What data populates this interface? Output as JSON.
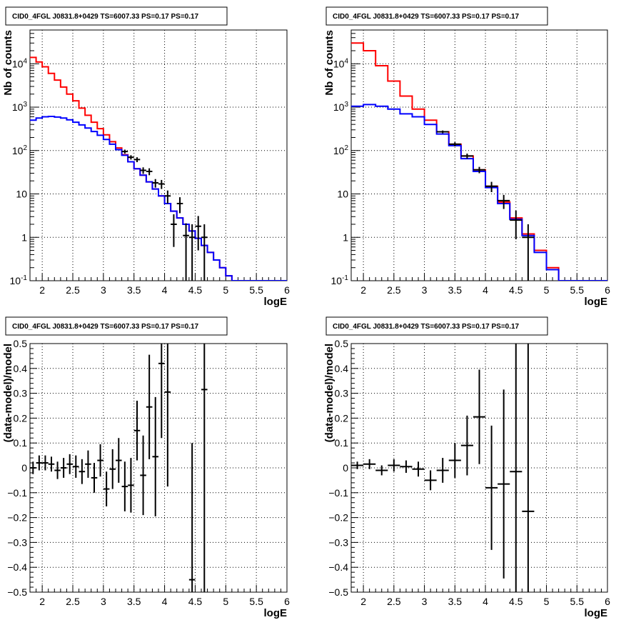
{
  "colors": {
    "model_total": "#ff0000",
    "model_component": "#0000ff",
    "data": "#000000"
  },
  "chart_data": [
    {
      "type": "line",
      "title": "CID0_4FGL J0831.8+0429 TS=6007.33 PS=0.17 PS=0.17",
      "xlabel": "logE",
      "ylabel": "Nb of counts",
      "xlim": [
        1.8,
        6.0
      ],
      "ylim": [
        0.1,
        60000
      ],
      "yscale": "log",
      "grid": true,
      "xticks": [
        "2",
        "2.5",
        "3",
        "3.5",
        "4",
        "4.5",
        "5",
        "5.5",
        "6"
      ],
      "yticks": [
        "10^-1",
        "1",
        "10",
        "10^2",
        "10^3",
        "10^4"
      ],
      "bin_edges": [
        1.8,
        1.9,
        2.0,
        2.1,
        2.2,
        2.3,
        2.4,
        2.5,
        2.6,
        2.7,
        2.8,
        2.9,
        3.0,
        3.1,
        3.2,
        3.3,
        3.4,
        3.5,
        3.6,
        3.7,
        3.8,
        3.9,
        4.0,
        4.1,
        4.2,
        4.3,
        4.4,
        4.5,
        4.6,
        4.7,
        4.8,
        4.9,
        5.0,
        5.1,
        5.2,
        6.0
      ],
      "series": [
        {
          "style": "histogram",
          "color": "#ff0000",
          "values": [
            14000,
            11000,
            8500,
            6000,
            4200,
            2900,
            2000,
            1400,
            950,
            650,
            450,
            320,
            230,
            160,
            115,
            80,
            55,
            38,
            27,
            19,
            13,
            9,
            6,
            4,
            2.8,
            2,
            1.4,
            0.95,
            0.65,
            0.45,
            0.3,
            0.2,
            0.13,
            0.1,
            0.1
          ]
        },
        {
          "style": "histogram",
          "color": "#0000ff",
          "values": [
            500,
            560,
            600,
            610,
            590,
            560,
            510,
            450,
            390,
            330,
            275,
            225,
            180,
            140,
            105,
            78,
            55,
            38,
            27,
            19,
            13,
            9,
            6,
            4,
            2.8,
            2,
            1.4,
            0.95,
            0.65,
            0.45,
            0.3,
            0.2,
            0.13,
            0.1,
            0.1
          ]
        },
        {
          "style": "points",
          "color": "#000000",
          "x": [
            3.35,
            3.45,
            3.55,
            3.65,
            3.75,
            3.85,
            3.95,
            4.05,
            4.15,
            4.25,
            4.35,
            4.45,
            4.55,
            4.65
          ],
          "y": [
            95,
            70,
            62,
            35,
            33,
            18,
            17,
            9,
            2,
            6,
            1.1,
            1,
            1.8,
            1
          ],
          "yerr": [
            10,
            8,
            8,
            6,
            6,
            4,
            4,
            3,
            1.4,
            2.4,
            1,
            1,
            1.3,
            1
          ]
        }
      ]
    },
    {
      "type": "line",
      "title": "CID0_4FGL J0831.8+0429 TS=6007.33 PS=0.17 PS=0.17",
      "xlabel": "logE",
      "ylabel": "Nb of counts",
      "xlim": [
        1.8,
        6.0
      ],
      "ylim": [
        0.1,
        60000
      ],
      "yscale": "log",
      "grid": true,
      "xticks": [
        "2",
        "2.5",
        "3",
        "3.5",
        "4",
        "4.5",
        "5",
        "5.5",
        "6"
      ],
      "yticks": [
        "10^-1",
        "1",
        "10",
        "10^2",
        "10^3",
        "10^4"
      ],
      "bin_edges": [
        1.8,
        2.0,
        2.2,
        2.4,
        2.6,
        2.8,
        3.0,
        3.2,
        3.4,
        3.6,
        3.8,
        4.0,
        4.2,
        4.4,
        4.6,
        4.8,
        5.0,
        5.2,
        6.0
      ],
      "series": [
        {
          "style": "histogram",
          "color": "#ff0000",
          "values": [
            30000,
            20000,
            9000,
            4000,
            1800,
            900,
            500,
            270,
            140,
            75,
            36,
            15,
            6.5,
            2.8,
            1.2,
            0.5,
            0.2,
            0.1
          ]
        },
        {
          "style": "histogram",
          "color": "#0000ff",
          "values": [
            1050,
            1150,
            1050,
            900,
            700,
            600,
            400,
            240,
            130,
            65,
            33,
            14,
            6,
            2.6,
            1.1,
            0.45,
            0.18,
            0.1
          ]
        },
        {
          "style": "points",
          "color": "#000000",
          "x": [
            3.3,
            3.5,
            3.7,
            3.9,
            4.1,
            4.3,
            4.5,
            4.7
          ],
          "y": [
            270,
            140,
            75,
            36,
            15,
            7,
            2.5,
            1
          ],
          "yerr": [
            20,
            15,
            10,
            6,
            4,
            2.5,
            1.6,
            1
          ]
        }
      ]
    },
    {
      "type": "scatter",
      "title": "CID0_4FGL J0831.8+0429 TS=6007.33 PS=0.17 PS=0.17",
      "xlabel": "logE",
      "ylabel": "(data-model)/model",
      "xlim": [
        1.8,
        6.0
      ],
      "ylim": [
        -0.5,
        0.5
      ],
      "grid": true,
      "xticks": [
        "2",
        "2.5",
        "3",
        "3.5",
        "4",
        "4.5",
        "5",
        "5.5",
        "6"
      ],
      "yticks": [
        "−0.5",
        "−0.4",
        "−0.3",
        "−0.2",
        "−0.1",
        "0",
        "0.1",
        "0.2",
        "0.3",
        "0.4",
        "0.5"
      ],
      "xerr": 0.05,
      "x": [
        1.85,
        1.95,
        2.05,
        2.15,
        2.25,
        2.35,
        2.45,
        2.55,
        2.65,
        2.75,
        2.85,
        2.95,
        3.05,
        3.15,
        3.25,
        3.35,
        3.45,
        3.55,
        3.65,
        3.75,
        3.85,
        3.95,
        4.05,
        4.45,
        4.65
      ],
      "y": [
        0.0,
        0.02,
        0.02,
        0.015,
        -0.01,
        0.0,
        0.015,
        0.005,
        -0.015,
        0.015,
        -0.04,
        0.03,
        -0.085,
        -0.005,
        0.03,
        -0.075,
        -0.07,
        0.15,
        -0.03,
        0.245,
        0.045,
        0.42,
        0.305,
        -0.45,
        0.315
      ],
      "yerr": [
        0.025,
        0.03,
        0.03,
        0.03,
        0.035,
        0.04,
        0.04,
        0.045,
        0.05,
        0.055,
        0.06,
        0.065,
        0.07,
        0.08,
        0.09,
        0.1,
        0.11,
        0.12,
        0.16,
        0.21,
        0.24,
        0.3,
        0.38,
        0.55,
        0.85
      ]
    },
    {
      "type": "scatter",
      "title": "CID0_4FGL J0831.8+0429 TS=6007.33 PS=0.17 PS=0.17",
      "xlabel": "logE",
      "ylabel": "(data-model)/model",
      "xlim": [
        1.8,
        6.0
      ],
      "ylim": [
        -0.5,
        0.5
      ],
      "grid": true,
      "xticks": [
        "2",
        "2.5",
        "3",
        "3.5",
        "4",
        "4.5",
        "5",
        "5.5",
        "6"
      ],
      "yticks": [
        "−0.5",
        "−0.4",
        "−0.3",
        "−0.2",
        "−0.1",
        "0",
        "0.1",
        "0.2",
        "0.3",
        "0.4",
        "0.5"
      ],
      "xerr": 0.1,
      "x": [
        1.9,
        2.1,
        2.3,
        2.5,
        2.7,
        2.9,
        3.1,
        3.3,
        3.5,
        3.7,
        3.9,
        4.1,
        4.3,
        4.5,
        4.7
      ],
      "y": [
        0.01,
        0.015,
        -0.01,
        0.01,
        0.005,
        -0.005,
        -0.05,
        -0.01,
        0.03,
        0.09,
        0.205,
        -0.08,
        -0.065,
        -0.015,
        -0.175
      ],
      "yerr": [
        0.015,
        0.02,
        0.02,
        0.025,
        0.025,
        0.03,
        0.04,
        0.05,
        0.07,
        0.12,
        0.19,
        0.25,
        0.38,
        0.8,
        1.0
      ]
    }
  ]
}
